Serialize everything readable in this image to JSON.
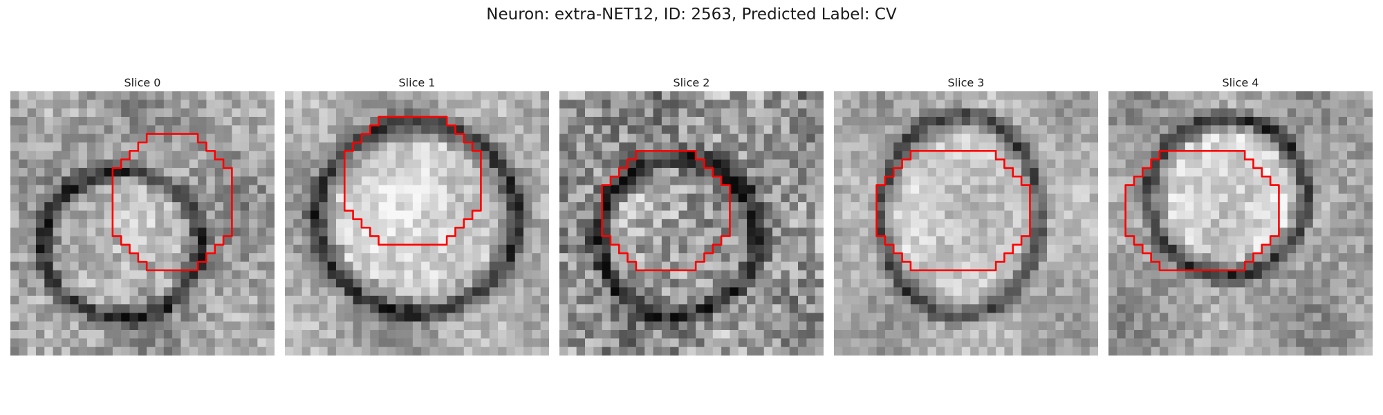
{
  "figure": {
    "title": "Neuron: extra-NET12, ID: 2563, Predicted Label: CV"
  },
  "panels": [
    {
      "label": "Slice 0",
      "mask_color": "#ff0000"
    },
    {
      "label": "Slice 1",
      "mask_color": "#ff0000"
    },
    {
      "label": "Slice 2",
      "mask_color": "#ff0000"
    },
    {
      "label": "Slice 3",
      "mask_color": "#ff0000"
    },
    {
      "label": "Slice 4",
      "mask_color": "#ff0000"
    }
  ]
}
